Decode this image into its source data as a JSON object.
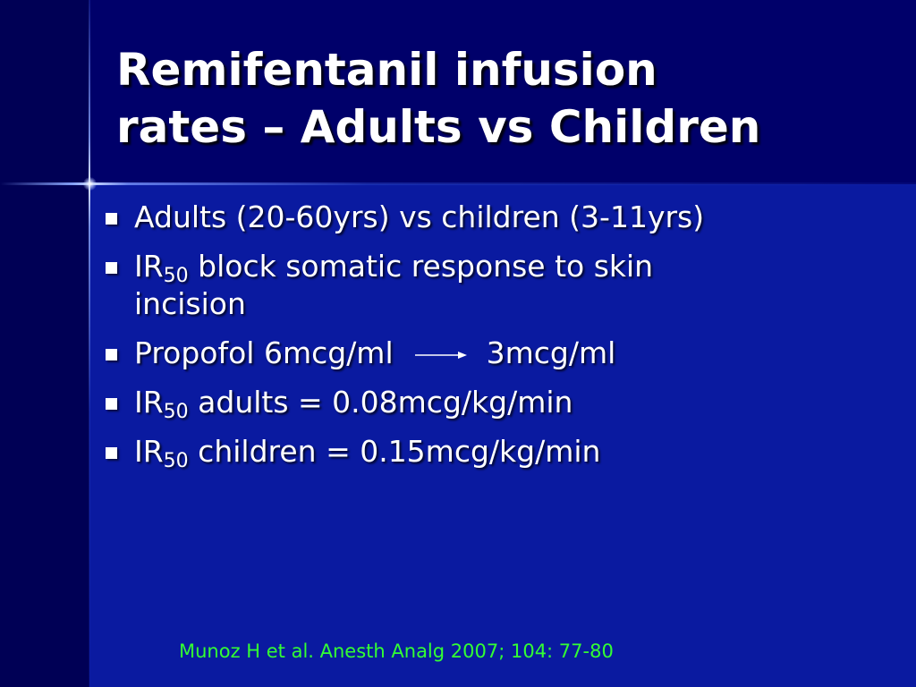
{
  "slide": {
    "title_line1": "Remifentanil infusion",
    "title_line2": "rates – Adults vs Children",
    "bullets": [
      {
        "text": "Adults (20-60yrs) vs children (3-11yrs)"
      },
      {
        "prefix": "IR",
        "subscript": "50",
        "text_line1": "block somatic response to skin",
        "text_line2": "incision"
      },
      {
        "text_left": "Propofol 6mcg/ml",
        "text_right": "3mcg/ml",
        "arrow_icon": "arrow-right-icon"
      },
      {
        "prefix": "IR",
        "subscript": "50",
        "text": "adults = 0.08mcg/kg/min"
      },
      {
        "prefix": "IR",
        "subscript": "50",
        "text": "children = 0.15mcg/kg/min"
      }
    ],
    "citation": "Munoz H et al. Anesth Analg 2007; 104: 77-80"
  },
  "colors": {
    "background": "#000066",
    "content_background": "#0a1aa0",
    "text": "#ffffff",
    "citation": "#33ff33"
  }
}
